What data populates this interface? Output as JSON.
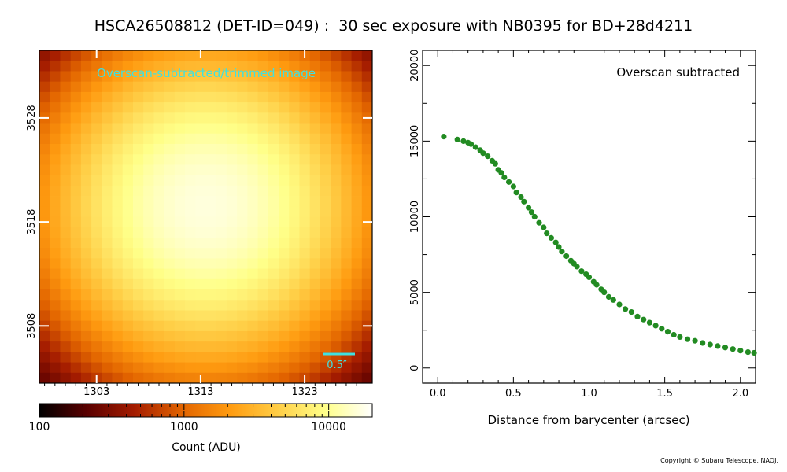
{
  "title": "HSCA26508812 (DET-ID=049) :  30 sec exposure with NB0395 for BD+28d4211",
  "copyright": "Copyright © Subaru Telescope, NAOJ.",
  "colors": {
    "scatter": "#228b22",
    "image_label": "#40e0e0",
    "scale_bar": "#40e0e0",
    "colormap": [
      "#000000",
      "#5a0000",
      "#a41c00",
      "#e26400",
      "#ff9b10",
      "#ffcd45",
      "#ffff88",
      "#ffffff"
    ]
  },
  "chart_data": [
    {
      "type": "heatmap",
      "label": "Overscan-subtracted/trimmed image",
      "x_ticks": [
        "1303",
        "1313",
        "1323"
      ],
      "x_tick_values": [
        1303,
        1313,
        1323
      ],
      "y_ticks": [
        "3528",
        "3518",
        "3508"
      ],
      "y_tick_values": [
        3528,
        3518,
        3508
      ],
      "xlim": [
        1297.5,
        1329.5
      ],
      "ylim": [
        3502.5,
        3534.5
      ],
      "grid": [
        32,
        32
      ],
      "center": [
        1313.5,
        3519.5
      ],
      "peak_counts": 16000,
      "edge_counts": 150,
      "scale_bar_label": "0.5″",
      "colorbar": {
        "scale": "log",
        "range": [
          100,
          20000
        ],
        "ticks": [
          "100",
          "1000",
          "10000"
        ],
        "tick_values": [
          100,
          1000,
          10000
        ],
        "label": "Count (ADU)"
      }
    },
    {
      "type": "scatter",
      "annotation": "Overscan subtracted",
      "xlabel": "Distance from barycenter (arcsec)",
      "ylabel": "",
      "xlim": [
        -0.1,
        2.1
      ],
      "ylim": [
        -1000,
        21000
      ],
      "x_ticks": [
        "0.0",
        "0.5",
        "1.0",
        "1.5",
        "2.0"
      ],
      "x_tick_values": [
        0,
        0.5,
        1.0,
        1.5,
        2.0
      ],
      "y_ticks": [
        "0",
        "5000",
        "10000",
        "15000",
        "20000"
      ],
      "y_tick_values": [
        0,
        5000,
        10000,
        15000,
        20000
      ],
      "grid": false,
      "series": [
        {
          "x": [
            0.04,
            0.13,
            0.17,
            0.2,
            0.22,
            0.25,
            0.28,
            0.3,
            0.33,
            0.36,
            0.38,
            0.4,
            0.42,
            0.44,
            0.47,
            0.5,
            0.52,
            0.55,
            0.57,
            0.6,
            0.62,
            0.64,
            0.67,
            0.7,
            0.72,
            0.75,
            0.78,
            0.8,
            0.82,
            0.85,
            0.88,
            0.9,
            0.92,
            0.95,
            0.98,
            1.0,
            1.03,
            1.05,
            1.08,
            1.1,
            1.13,
            1.16,
            1.2,
            1.24,
            1.28,
            1.32,
            1.36,
            1.4,
            1.44,
            1.48,
            1.52,
            1.56,
            1.6,
            1.65,
            1.7,
            1.75,
            1.8,
            1.85,
            1.9,
            1.95,
            2.0,
            2.05,
            2.09
          ],
          "y": [
            15300,
            15100,
            15000,
            14900,
            14800,
            14600,
            14400,
            14200,
            14000,
            13700,
            13500,
            13100,
            12900,
            12600,
            12300,
            12000,
            11600,
            11300,
            11000,
            10600,
            10300,
            10000,
            9600,
            9300,
            8900,
            8600,
            8300,
            8000,
            7700,
            7400,
            7100,
            6900,
            6700,
            6400,
            6200,
            6000,
            5700,
            5500,
            5200,
            5000,
            4700,
            4500,
            4200,
            3900,
            3700,
            3400,
            3200,
            3000,
            2800,
            2600,
            2400,
            2200,
            2050,
            1900,
            1800,
            1650,
            1550,
            1450,
            1350,
            1250,
            1150,
            1050,
            1000
          ]
        }
      ]
    }
  ]
}
